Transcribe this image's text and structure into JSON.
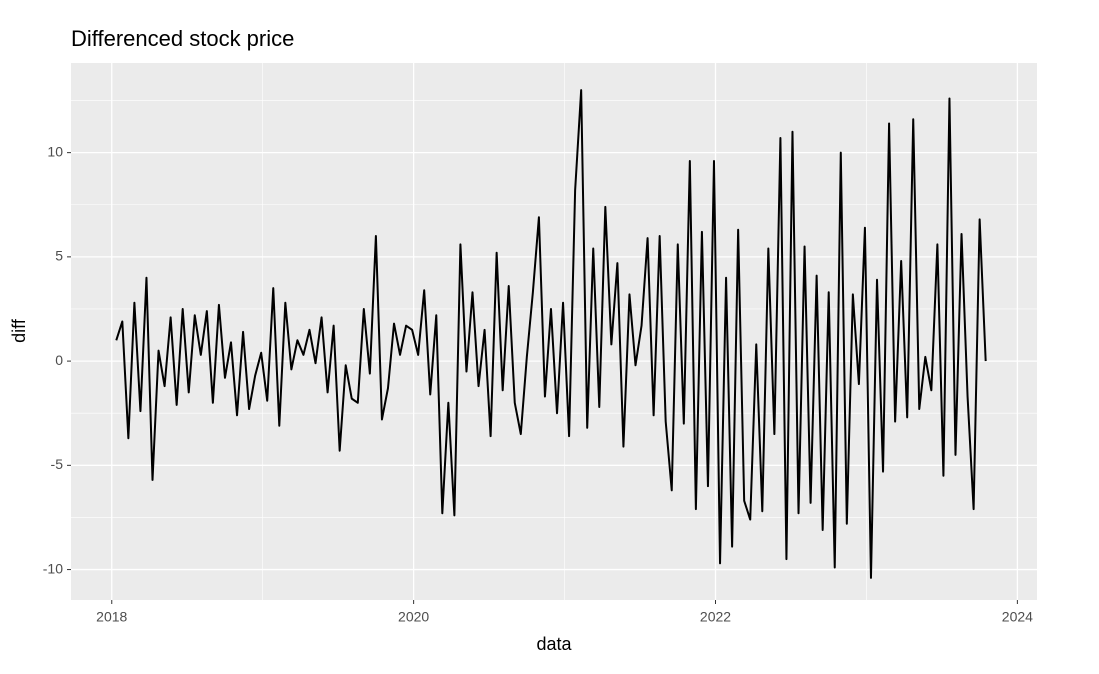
{
  "chart_data": {
    "type": "line",
    "title": "Differenced stock price",
    "x_label": "data",
    "y_label": "diff",
    "x": [
      2018.03,
      2018.07,
      2018.11,
      2018.15,
      2018.19,
      2018.23,
      2018.27,
      2018.31,
      2018.35,
      2018.39,
      2018.43,
      2018.47,
      2018.51,
      2018.55,
      2018.59,
      2018.63,
      2018.67,
      2018.71,
      2018.75,
      2018.79,
      2018.83,
      2018.87,
      2018.91,
      2018.95,
      2018.99,
      2019.03,
      2019.07,
      2019.11,
      2019.15,
      2019.19,
      2019.23,
      2019.27,
      2019.31,
      2019.35,
      2019.39,
      2019.43,
      2019.47,
      2019.51,
      2019.55,
      2019.59,
      2019.63,
      2019.67,
      2019.71,
      2019.75,
      2019.79,
      2019.83,
      2019.87,
      2019.91,
      2019.95,
      2019.99,
      2020.03,
      2020.07,
      2020.11,
      2020.15,
      2020.19,
      2020.23,
      2020.27,
      2020.31,
      2020.35,
      2020.39,
      2020.43,
      2020.47,
      2020.51,
      2020.55,
      2020.59,
      2020.63,
      2020.67,
      2020.71,
      2020.75,
      2020.79,
      2020.83,
      2020.87,
      2020.91,
      2020.95,
      2020.99,
      2021.03,
      2021.07,
      2021.11,
      2021.15,
      2021.19,
      2021.23,
      2021.27,
      2021.31,
      2021.35,
      2021.39,
      2021.43,
      2021.47,
      2021.51,
      2021.55,
      2021.59,
      2021.63,
      2021.67,
      2021.71,
      2021.75,
      2021.79,
      2021.83,
      2021.87,
      2021.91,
      2021.95,
      2021.99,
      2022.03,
      2022.07,
      2022.11,
      2022.15,
      2022.19,
      2022.23,
      2022.27,
      2022.31,
      2022.35,
      2022.39,
      2022.43,
      2022.47,
      2022.51,
      2022.55,
      2022.59,
      2022.63,
      2022.67,
      2022.71,
      2022.75,
      2022.79,
      2022.83,
      2022.87,
      2022.91,
      2022.95,
      2022.99,
      2023.03,
      2023.07,
      2023.11,
      2023.15,
      2023.19,
      2023.23,
      2023.27,
      2023.31,
      2023.35,
      2023.39,
      2023.43,
      2023.47,
      2023.51,
      2023.55,
      2023.59,
      2023.63,
      2023.67,
      2023.71,
      2023.75,
      2023.79
    ],
    "values": [
      1.0,
      1.9,
      -3.7,
      2.8,
      -2.4,
      4.0,
      -5.7,
      0.5,
      -1.2,
      2.1,
      -2.1,
      2.5,
      -1.5,
      2.2,
      0.3,
      2.4,
      -2.0,
      2.7,
      -0.8,
      0.9,
      -2.6,
      1.4,
      -2.3,
      -0.7,
      0.4,
      -1.9,
      3.5,
      -3.1,
      2.8,
      -0.4,
      1.0,
      0.3,
      1.5,
      -0.1,
      2.1,
      -1.5,
      1.7,
      -4.3,
      -0.2,
      -1.8,
      -2.0,
      2.5,
      -0.6,
      6.0,
      -2.8,
      -1.3,
      1.8,
      0.3,
      1.7,
      1.5,
      0.3,
      3.4,
      -1.6,
      2.2,
      -7.3,
      -2.0,
      -7.4,
      5.6,
      -0.5,
      3.3,
      -1.2,
      1.5,
      -3.6,
      5.2,
      -1.4,
      3.6,
      -2.0,
      -3.5,
      0.2,
      3.3,
      6.9,
      -1.7,
      2.5,
      -2.5,
      2.8,
      -3.6,
      8.2,
      13.0,
      -3.2,
      5.4,
      -2.2,
      7.4,
      0.8,
      4.7,
      -4.1,
      3.2,
      -0.2,
      1.7,
      5.9,
      -2.6,
      6.0,
      -2.9,
      -6.2,
      5.6,
      -3.0,
      9.6,
      -7.1,
      6.2,
      -6.0,
      9.6,
      -9.7,
      4.0,
      -8.9,
      6.3,
      -6.7,
      -7.6,
      0.8,
      -7.2,
      5.4,
      -3.5,
      10.7,
      -9.5,
      11.0,
      -7.3,
      5.5,
      -6.8,
      4.1,
      -8.1,
      3.3,
      -9.9,
      10.0,
      -7.8,
      3.2,
      -1.1,
      6.4,
      -10.4,
      3.9,
      -5.3,
      11.4,
      -2.9,
      4.8,
      -2.7,
      11.6,
      -2.3,
      0.2,
      -1.4,
      5.6,
      -5.5,
      12.6,
      -4.5,
      6.1,
      -1.7,
      -7.1,
      6.8,
      0.0
    ],
    "color": "#000000",
    "xlim": [
      2017.73,
      2024.13
    ],
    "xticks": [
      2018,
      2020,
      2022,
      2024
    ],
    "ylim": [
      -11.46,
      14.3
    ],
    "yticks": [
      -10,
      -5,
      0,
      5,
      10
    ],
    "grid": true
  }
}
